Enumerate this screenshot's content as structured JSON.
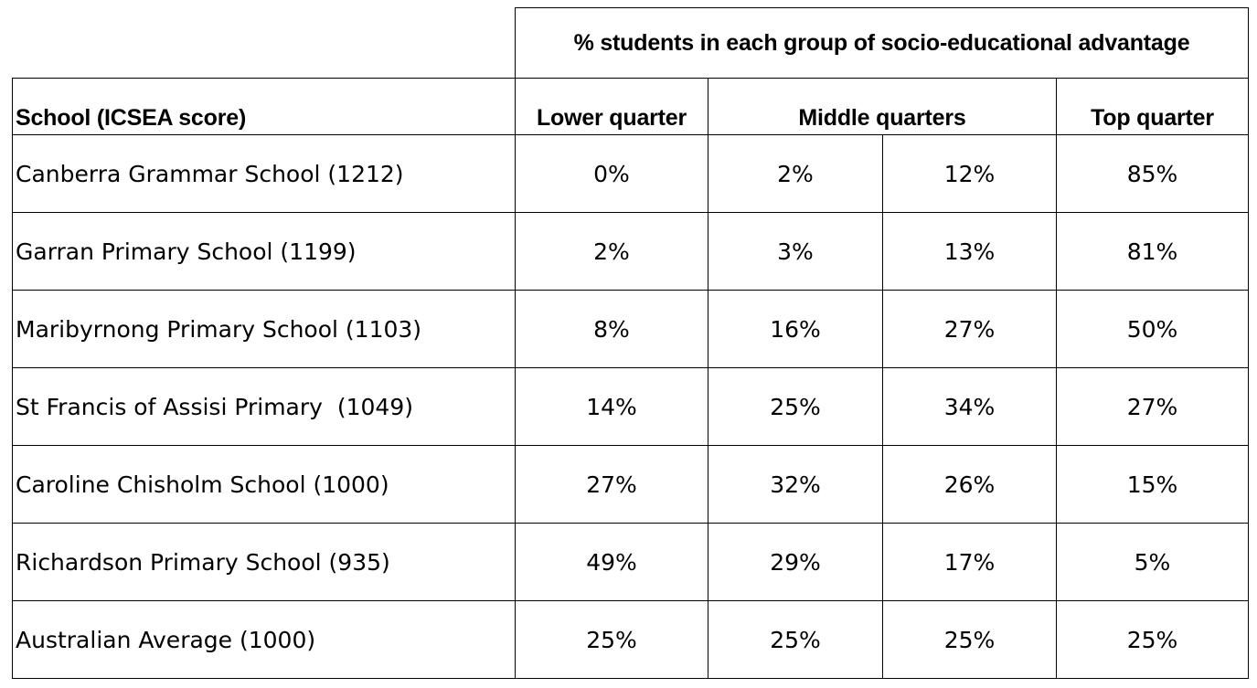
{
  "table": {
    "group_header": "% students in each group of socio-educational advantage",
    "column_headers": {
      "school": "School (ICSEA score)",
      "lower": "Lower quarter",
      "middle": "Middle quarters",
      "top": "Top quarter"
    },
    "rows": [
      {
        "school": "Canberra Grammar School (1212)",
        "lower": "0%",
        "middle_1": "2%",
        "middle_2": "12%",
        "top": "85%"
      },
      {
        "school": "Garran Primary School (1199)",
        "lower": "2%",
        "middle_1": "3%",
        "middle_2": "13%",
        "top": "81%"
      },
      {
        "school": "Maribyrnong Primary School (1103)",
        "lower": "8%",
        "middle_1": "16%",
        "middle_2": "27%",
        "top": "50%"
      },
      {
        "school": "St Francis of Assisi Primary  (1049)",
        "lower": "14%",
        "middle_1": "25%",
        "middle_2": "34%",
        "top": "27%"
      },
      {
        "school": "Caroline Chisholm School (1000)",
        "lower": "27%",
        "middle_1": "32%",
        "middle_2": "26%",
        "top": "15%"
      },
      {
        "school": "Richardson Primary School (935)",
        "lower": "49%",
        "middle_1": "29%",
        "middle_2": "17%",
        "top": "5%"
      },
      {
        "school": "Australian Average (1000)",
        "lower": "25%",
        "middle_1": "25%",
        "middle_2": "25%",
        "top": "25%"
      }
    ]
  }
}
